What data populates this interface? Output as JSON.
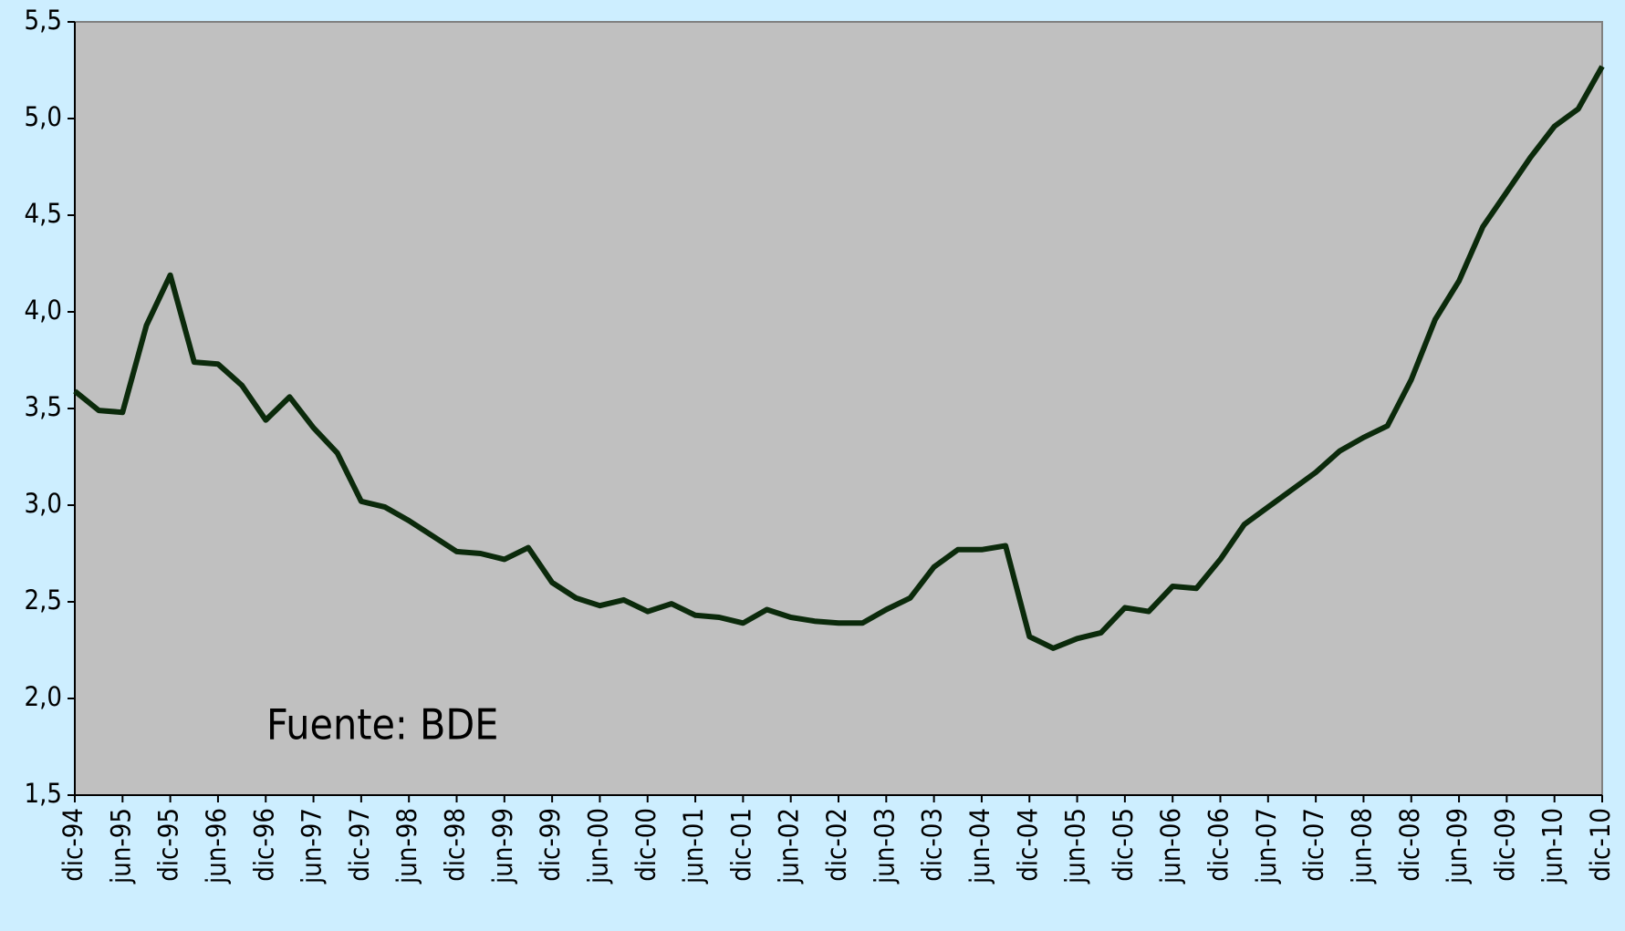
{
  "chart_data": {
    "type": "line",
    "annotation": "Fuente: BDE",
    "categories": [
      "dic-94",
      null,
      "jun-95",
      null,
      "dic-95",
      null,
      "jun-96",
      null,
      "dic-96",
      null,
      "jun-97",
      null,
      "dic-97",
      null,
      "jun-98",
      null,
      "dic-98",
      null,
      "jun-99",
      null,
      "dic-99",
      null,
      "jun-00",
      null,
      "dic-00",
      null,
      "jun-01",
      null,
      "dic-01",
      null,
      "jun-02",
      null,
      "dic-02",
      null,
      "jun-03",
      null,
      "dic-03",
      null,
      "jun-04",
      null,
      "dic-04",
      null,
      "jun-05",
      null,
      "dic-05",
      null,
      "jun-06",
      null,
      "dic-06",
      null,
      "jun-07",
      null,
      "dic-07",
      null,
      "jun-08",
      null,
      "dic-08",
      null,
      "jun-09",
      null,
      "dic-09",
      null,
      "jun-10",
      null,
      "dic-10"
    ],
    "series": [
      {
        "color": "#0b2a0b",
        "values": [
          3.59,
          3.49,
          3.48,
          3.93,
          4.19,
          3.74,
          3.73,
          3.62,
          3.44,
          3.56,
          3.4,
          3.27,
          3.02,
          2.99,
          2.92,
          2.84,
          2.76,
          2.75,
          2.72,
          2.78,
          2.6,
          2.52,
          2.48,
          2.51,
          2.45,
          2.49,
          2.43,
          2.42,
          2.39,
          2.46,
          2.42,
          2.4,
          2.39,
          2.39,
          2.46,
          2.52,
          2.68,
          2.77,
          2.77,
          2.79,
          2.32,
          2.26,
          2.31,
          2.34,
          2.47,
          2.45,
          2.58,
          2.57,
          2.72,
          2.9,
          2.99,
          3.08,
          3.17,
          3.28,
          3.35,
          3.41,
          3.65,
          3.96,
          4.16,
          4.44,
          4.62,
          4.8,
          4.96,
          5.05,
          5.27
        ]
      }
    ],
    "ylim": [
      1.5,
      5.5
    ],
    "yticks": [
      {
        "value": 1.5,
        "label": "1,5"
      },
      {
        "value": 2.0,
        "label": "2,0"
      },
      {
        "value": 2.5,
        "label": "2,5"
      },
      {
        "value": 3.0,
        "label": "3,0"
      },
      {
        "value": 3.5,
        "label": "3,5"
      },
      {
        "value": 4.0,
        "label": "4,0"
      },
      {
        "value": 4.5,
        "label": "4,5"
      },
      {
        "value": 5.0,
        "label": "5,0"
      },
      {
        "value": 5.5,
        "label": "5,5"
      }
    ],
    "grid": false
  }
}
